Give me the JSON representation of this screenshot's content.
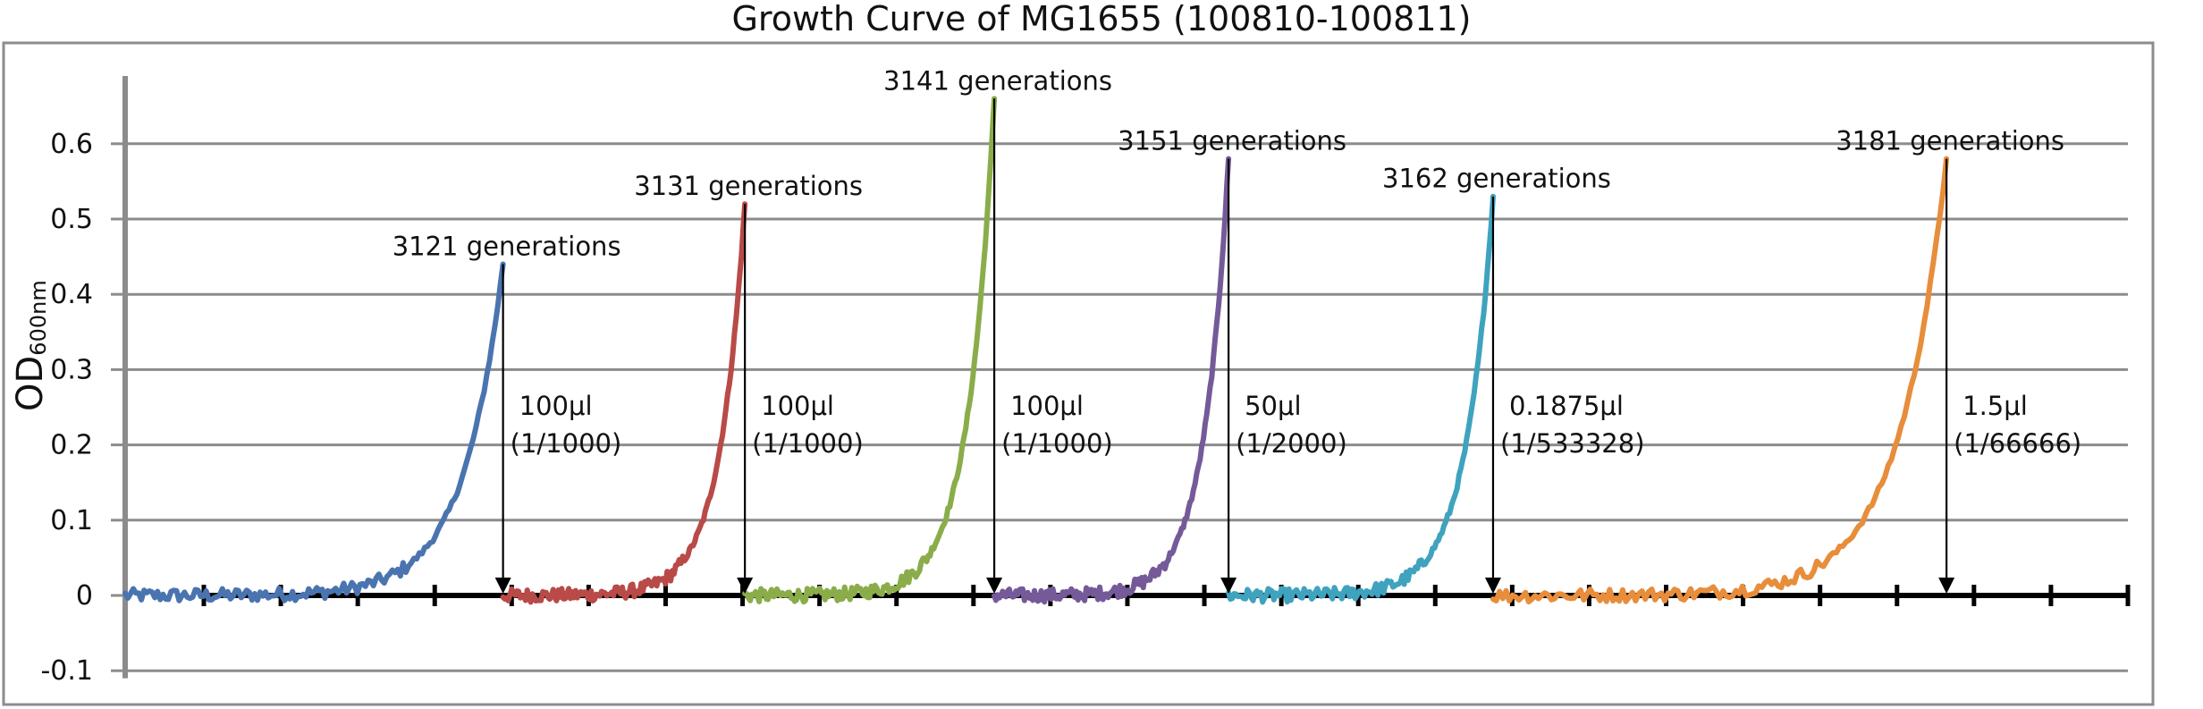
{
  "chart_data": {
    "type": "line",
    "title": "Growth Curve of MG1655 (100810-100811)",
    "xlabel": "",
    "ylabel": "OD",
    "ylabel_subscript": "600nm",
    "ylim": [
      -0.1,
      0.7
    ],
    "yticks": [
      -0.1,
      0,
      0.1,
      0.2,
      0.3,
      0.4,
      0.5,
      0.6
    ],
    "ytick_labels": [
      "-0.1",
      "0",
      "0.1",
      "0.2",
      "0.3",
      "0.4",
      "0.5",
      "0.6"
    ],
    "xlim": [
      0,
      26.5
    ],
    "grid": true,
    "legend": "none",
    "zero_axis_ticks": 26,
    "series": [
      {
        "color": "#4a74b0",
        "start": 0.0,
        "end": 5.0,
        "peak": 0.44
      },
      {
        "color": "#b84a48",
        "start": 5.0,
        "end": 8.2,
        "peak": 0.52
      },
      {
        "color": "#8aad4a",
        "start": 8.2,
        "end": 11.5,
        "peak": 0.66
      },
      {
        "color": "#755a99",
        "start": 11.5,
        "end": 14.6,
        "peak": 0.58
      },
      {
        "color": "#3fa3bf",
        "start": 14.6,
        "end": 18.1,
        "peak": 0.53
      },
      {
        "color": "#e78d3b",
        "start": 18.1,
        "end": 24.1,
        "peak": 0.58
      }
    ],
    "annotations": [
      {
        "text": "3121 generations",
        "transfer_line1": "100μl",
        "transfer_line2": "(1/1000)",
        "x": 5.0,
        "y": 0.44
      },
      {
        "text": "3131 generations",
        "transfer_line1": "100μl",
        "transfer_line2": "(1/1000)",
        "x": 8.2,
        "y": 0.52
      },
      {
        "text": "3141 generations",
        "transfer_line1": "100μl",
        "transfer_line2": "(1/1000)",
        "x": 11.5,
        "y": 0.66
      },
      {
        "text": "3151 generations",
        "transfer_line1": "50μl",
        "transfer_line2": "(1/2000)",
        "x": 14.6,
        "y": 0.58
      },
      {
        "text": "3162 generations",
        "transfer_line1": "0.1875μl",
        "transfer_line2": "(1/533328)",
        "x": 18.1,
        "y": 0.53
      },
      {
        "text": "3181 generations",
        "transfer_line1": "1.5μl",
        "transfer_line2": "(1/66666)",
        "x": 24.1,
        "y": 0.58
      }
    ]
  }
}
